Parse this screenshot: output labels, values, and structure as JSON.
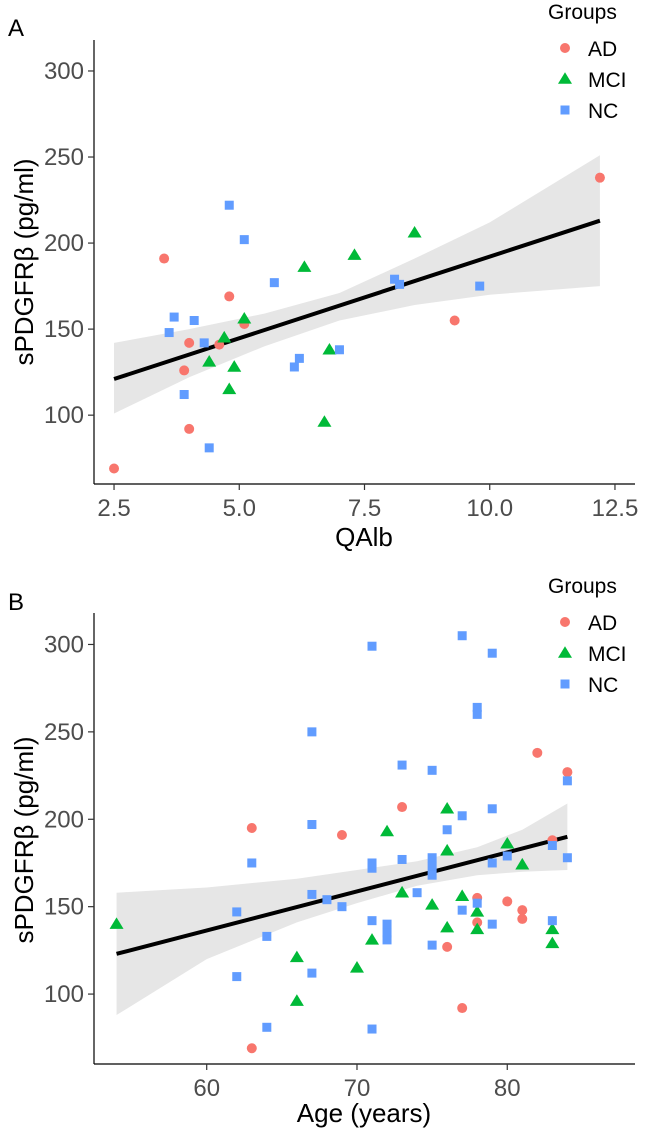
{
  "colors": {
    "AD": "#F8766D",
    "MCI": "#00BA38",
    "NC": "#619CFF",
    "band": "#e6e6e6",
    "line": "#000000"
  },
  "chart_data": [
    {
      "panel": "A",
      "type": "scatter",
      "xlabel": "QAlb",
      "ylabel": "sPDGFRβ (pg/ml)",
      "xlim": [
        2.1,
        12.9
      ],
      "ylim": [
        60,
        318
      ],
      "xticks": [
        2.5,
        5.0,
        7.5,
        10.0,
        12.5
      ],
      "xtick_labels": [
        "2.5",
        "5.0",
        "7.5",
        "10.0",
        "12.5"
      ],
      "yticks": [
        100,
        150,
        200,
        250,
        300
      ],
      "ytick_labels": [
        "100",
        "150",
        "200",
        "250",
        "300"
      ],
      "legend": {
        "title": "Groups",
        "entries": [
          "AD",
          "MCI",
          "NC"
        ],
        "position": "top-right"
      },
      "series": [
        {
          "name": "AD",
          "marker": "circle",
          "points": [
            [
              2.5,
              69
            ],
            [
              3.5,
              191
            ],
            [
              3.9,
              126
            ],
            [
              4.0,
              92
            ],
            [
              4.0,
              142
            ],
            [
              4.6,
              141
            ],
            [
              4.8,
              169
            ],
            [
              5.1,
              153
            ],
            [
              9.3,
              155
            ],
            [
              12.2,
              238
            ]
          ]
        },
        {
          "name": "MCI",
          "marker": "triangle",
          "points": [
            [
              4.4,
              131
            ],
            [
              4.7,
              145
            ],
            [
              4.8,
              115
            ],
            [
              4.9,
              128
            ],
            [
              5.1,
              156
            ],
            [
              6.3,
              186
            ],
            [
              6.7,
              96
            ],
            [
              6.8,
              138
            ],
            [
              7.3,
              193
            ],
            [
              8.5,
              206
            ]
          ]
        },
        {
          "name": "NC",
          "marker": "square",
          "points": [
            [
              3.6,
              148
            ],
            [
              3.7,
              157
            ],
            [
              3.9,
              112
            ],
            [
              4.1,
              155
            ],
            [
              4.3,
              142
            ],
            [
              4.4,
              81
            ],
            [
              4.8,
              222
            ],
            [
              5.1,
              202
            ],
            [
              5.7,
              177
            ],
            [
              6.1,
              128
            ],
            [
              6.2,
              133
            ],
            [
              7.0,
              138
            ],
            [
              8.1,
              179
            ],
            [
              8.2,
              176
            ],
            [
              9.8,
              175
            ]
          ]
        }
      ],
      "fit": {
        "x": [
          2.5,
          12.2
        ],
        "y": [
          121,
          213
        ]
      },
      "ci_band": {
        "x": [
          2.5,
          4.0,
          5.5,
          7.0,
          8.5,
          10.0,
          12.2
        ],
        "upper": [
          142,
          150,
          159,
          171,
          191,
          212,
          251
        ],
        "lower": [
          101,
          122,
          140,
          155,
          164,
          170,
          175
        ]
      }
    },
    {
      "panel": "B",
      "type": "scatter",
      "xlabel": "Age (years)",
      "ylabel": "sPDGFRβ (pg/ml)",
      "xlim": [
        52.5,
        88.5
      ],
      "ylim": [
        60,
        318
      ],
      "xticks": [
        60,
        70,
        80
      ],
      "xtick_labels": [
        "60",
        "70",
        "80"
      ],
      "yticks": [
        100,
        150,
        200,
        250,
        300
      ],
      "ytick_labels": [
        "100",
        "150",
        "200",
        "250",
        "300"
      ],
      "legend": {
        "title": "Groups",
        "entries": [
          "AD",
          "MCI",
          "NC"
        ],
        "position": "top-right"
      },
      "series": [
        {
          "name": "AD",
          "marker": "circle",
          "points": [
            [
              63,
              69
            ],
            [
              63,
              195
            ],
            [
              69,
              191
            ],
            [
              73,
              207
            ],
            [
              76,
              127
            ],
            [
              77,
              92
            ],
            [
              78,
              155
            ],
            [
              78,
              141
            ],
            [
              80,
              153
            ],
            [
              81,
              148
            ],
            [
              81,
              143
            ],
            [
              82,
              238
            ],
            [
              83,
              188
            ],
            [
              84,
              227
            ]
          ]
        },
        {
          "name": "MCI",
          "marker": "triangle",
          "points": [
            [
              54,
              140
            ],
            [
              66,
              121
            ],
            [
              66,
              96
            ],
            [
              70,
              115
            ],
            [
              71,
              131
            ],
            [
              72,
              193
            ],
            [
              73,
              158
            ],
            [
              75,
              151
            ],
            [
              76,
              206
            ],
            [
              76,
              182
            ],
            [
              76,
              138
            ],
            [
              77,
              156
            ],
            [
              78,
              147
            ],
            [
              78,
              137
            ],
            [
              80,
              186
            ],
            [
              81,
              174
            ],
            [
              83,
              137
            ],
            [
              83,
              129
            ]
          ]
        },
        {
          "name": "NC",
          "marker": "square",
          "points": [
            [
              62,
              147
            ],
            [
              62,
              110
            ],
            [
              63,
              175
            ],
            [
              64,
              133
            ],
            [
              64,
              81
            ],
            [
              67,
              250
            ],
            [
              67,
              197
            ],
            [
              67,
              157
            ],
            [
              67,
              112
            ],
            [
              68,
              154
            ],
            [
              69,
              150
            ],
            [
              71,
              299
            ],
            [
              71,
              175
            ],
            [
              71,
              172
            ],
            [
              71,
              142
            ],
            [
              71,
              80
            ],
            [
              72,
              140
            ],
            [
              72,
              135
            ],
            [
              72,
              131
            ],
            [
              73,
              231
            ],
            [
              73,
              177
            ],
            [
              74,
              158
            ],
            [
              75,
              228
            ],
            [
              75,
              178
            ],
            [
              75,
              173
            ],
            [
              75,
              168
            ],
            [
              75,
              128
            ],
            [
              76,
              194
            ],
            [
              77,
              305
            ],
            [
              77,
              202
            ],
            [
              77,
              148
            ],
            [
              78,
              264
            ],
            [
              78,
              260
            ],
            [
              78,
              152
            ],
            [
              79,
              295
            ],
            [
              79,
              206
            ],
            [
              79,
              175
            ],
            [
              79,
              140
            ],
            [
              80,
              179
            ],
            [
              83,
              185
            ],
            [
              83,
              142
            ],
            [
              84,
              222
            ],
            [
              84,
              178
            ]
          ]
        }
      ],
      "fit": {
        "x": [
          54,
          84
        ],
        "y": [
          123,
          190
        ]
      },
      "ci_band": {
        "x": [
          54,
          60,
          66,
          70,
          74,
          78,
          81,
          84
        ],
        "upper": [
          158,
          161,
          166,
          171,
          176,
          184,
          194,
          209
        ],
        "lower": [
          88,
          120,
          141,
          152,
          162,
          168,
          170,
          171
        ]
      }
    }
  ]
}
